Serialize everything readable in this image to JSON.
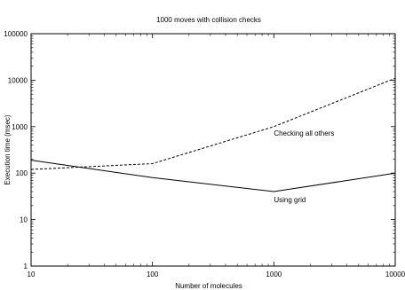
{
  "chart_data": {
    "type": "line",
    "title": "1000 moves with collision checks",
    "xlabel": "Number of molecules",
    "ylabel": "Execution time (msec)",
    "xscale": "log",
    "yscale": "log",
    "xlim": [
      10,
      10000
    ],
    "ylim": [
      1,
      100000
    ],
    "grid": false,
    "legend": "none",
    "x_ticks": [
      {
        "value": 10,
        "label": "10"
      },
      {
        "value": 100,
        "label": "100"
      },
      {
        "value": 1000,
        "label": "1000"
      },
      {
        "value": 10000,
        "label": "10000"
      }
    ],
    "y_ticks": [
      {
        "value": 1,
        "label": "1"
      },
      {
        "value": 10,
        "label": "10"
      },
      {
        "value": 100,
        "label": "100"
      },
      {
        "value": 1000,
        "label": "1000"
      },
      {
        "value": 10000,
        "label": "10000"
      },
      {
        "value": 100000,
        "label": "100000"
      }
    ],
    "series": [
      {
        "name": "Checking all others",
        "style": "dashed",
        "x": [
          10,
          100,
          1000,
          10000
        ],
        "y": [
          120,
          160,
          1000,
          11000
        ]
      },
      {
        "name": "Using grid",
        "style": "solid",
        "x": [
          10,
          100,
          1000,
          10000
        ],
        "y": [
          190,
          80,
          40,
          100
        ]
      }
    ],
    "annotations": [
      {
        "text": "Checking all others",
        "series": 0,
        "at_x": 1000
      },
      {
        "text": "Using grid",
        "series": 1,
        "at_x": 1000
      }
    ]
  }
}
